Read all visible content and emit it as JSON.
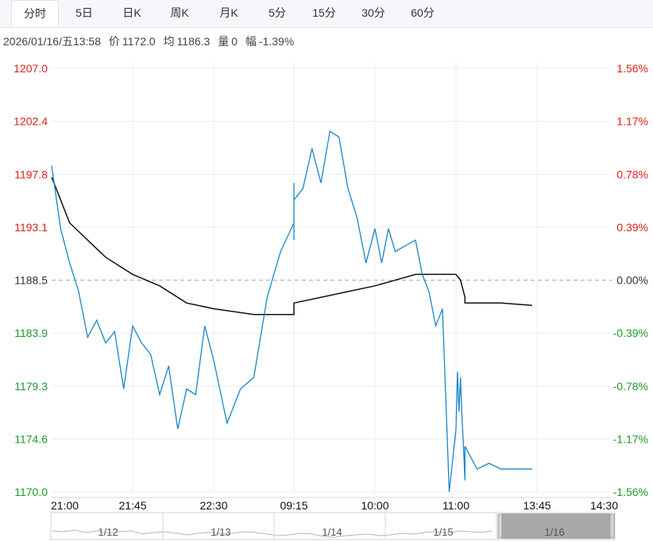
{
  "tabs": [
    "分时",
    "5日",
    "日K",
    "周K",
    "月K",
    "5分",
    "15分",
    "30分",
    "60分"
  ],
  "active_tab": 0,
  "info": {
    "datetime": "2026/01/16/五13:58",
    "price_label": "价",
    "price": "1172.0",
    "avg_label": "均",
    "avg": "1186.3",
    "vol_label": "量",
    "vol": "0",
    "change_label": "幅",
    "change": "-1.39%"
  },
  "colors": {
    "up": "#e0201a",
    "down": "#1a9a2c",
    "price_line": "#1a86c8",
    "avg_line": "#111111"
  },
  "chart_data": {
    "type": "line",
    "title": "",
    "xlabel": "",
    "ylabel": "",
    "ylim": [
      1170.0,
      1207.0
    ],
    "reference_price": 1188.5,
    "y_ticks": [
      "1207.0",
      "1202.4",
      "1197.8",
      "1193.1",
      "1188.5",
      "1183.9",
      "1179.3",
      "1174.6",
      "1170.0"
    ],
    "pct_ticks": [
      "1.56%",
      "1.17%",
      "0.78%",
      "0.39%",
      "0.00%",
      "-0.39%",
      "-0.78%",
      "-1.17%",
      "-1.56%"
    ],
    "x_ticks": [
      "21:00",
      "21:45",
      "22:30",
      "09:15",
      "10:00",
      "11:00",
      "13:45",
      "14:30"
    ],
    "grid": true,
    "series": [
      {
        "x": [
          "21:00",
          "21:05",
          "21:10",
          "21:15",
          "21:20",
          "21:25",
          "21:30",
          "21:35",
          "21:40",
          "21:45",
          "21:50",
          "21:55",
          "22:00",
          "22:05",
          "22:10",
          "22:15",
          "22:20",
          "22:25",
          "22:30",
          "22:35",
          "22:40",
          "22:45",
          "22:50",
          "22:55",
          "23:00",
          "09:00",
          "09:05",
          "09:10",
          "09:15",
          "09:20",
          "09:25",
          "09:30",
          "09:35",
          "09:40",
          "09:45",
          "09:50",
          "09:55",
          "10:00",
          "10:05",
          "10:10",
          "10:15",
          "10:30",
          "10:35",
          "10:40",
          "10:45",
          "10:50",
          "10:55",
          "11:00",
          "11:05",
          "11:10",
          "11:15",
          "11:20",
          "11:25",
          "11:30",
          "13:30",
          "13:35",
          "13:40",
          "13:45",
          "13:50",
          "13:55",
          "13:58"
        ],
        "values": [
          1198.5,
          1193.0,
          1190.0,
          1187.5,
          1183.5,
          1185.0,
          1183.0,
          1184.0,
          1179.0,
          1184.5,
          1183.0,
          1182.0,
          1178.5,
          1181.0,
          1175.5,
          1179.0,
          1178.5,
          1184.5,
          1181.5,
          1176.0,
          1179.0,
          1180.0,
          1187.0,
          1191.0,
          1193.5,
          1192.0,
          1195.0,
          1197.0,
          1195.5,
          1196.5,
          1200.0,
          1197.0,
          1201.5,
          1201.0,
          1196.5,
          1194.0,
          1190.0,
          1193.0,
          1190.0,
          1193.0,
          1191.0,
          1192.0,
          1189.0,
          1187.5,
          1184.5,
          1186.0,
          1170.0,
          1175.5,
          1180.5,
          1177.0,
          1180.0,
          1176.5,
          1174.0,
          1171.0,
          1174.0,
          1172.0,
          1172.5,
          1172.0,
          1172.0,
          1172.0,
          1172.0
        ]
      },
      {
        "x": [
          "21:00",
          "21:10",
          "21:20",
          "21:30",
          "21:40",
          "21:45",
          "22:00",
          "22:15",
          "22:30",
          "22:45",
          "23:00",
          "09:00",
          "09:15",
          "09:30",
          "09:45",
          "10:00",
          "10:15",
          "10:30",
          "10:45",
          "11:00",
          "11:15",
          "11:30",
          "13:30",
          "13:45",
          "13:58"
        ],
        "values": [
          1197.5,
          1193.5,
          1192.0,
          1190.5,
          1189.5,
          1189.0,
          1188.0,
          1186.5,
          1186.0,
          1185.5,
          1185.5,
          1186.0,
          1186.5,
          1187.0,
          1187.5,
          1188.0,
          1188.5,
          1189.0,
          1189.0,
          1189.0,
          1188.5,
          1187.0,
          1186.5,
          1186.5,
          1186.3
        ]
      }
    ]
  },
  "navigator": {
    "labels": [
      "1/12",
      "1/13",
      "1/14",
      "1/15",
      "1/16"
    ]
  }
}
